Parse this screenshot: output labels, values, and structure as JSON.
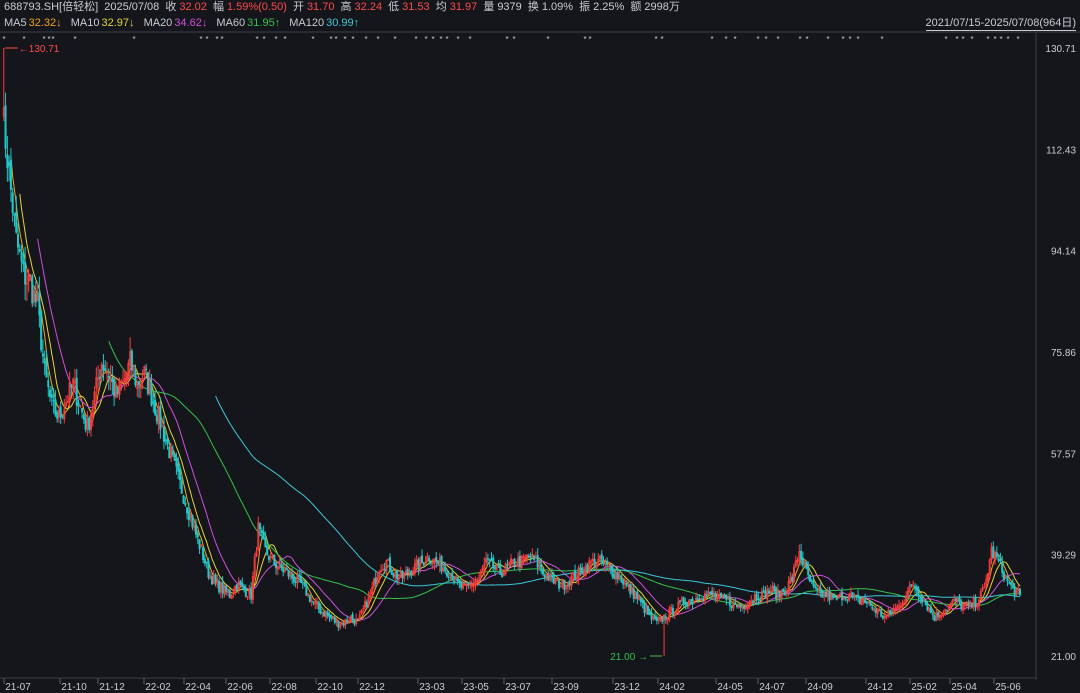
{
  "header": {
    "code": "688793.SH[倍轻松]",
    "date": "2025/07/08",
    "close_label": "收",
    "close": "32.02",
    "change_label": "幅",
    "change": "1.59%(0.50)",
    "open_label": "开",
    "open": "31.70",
    "high_label": "高",
    "high": "32.24",
    "low_label": "低",
    "low": "31.53",
    "avg_label": "均",
    "avg": "31.97",
    "vol_label": "量",
    "vol": "9379",
    "turnover_label": "换",
    "turnover": "1.09%",
    "amp_label": "振",
    "amp": "2.25%",
    "amount_label": "额",
    "amount": "2998万"
  },
  "ma_legend": [
    {
      "label": "MA5",
      "value": "32.32↓",
      "color": "#f2a41c"
    },
    {
      "label": "MA10",
      "value": "32.97↓",
      "color": "#e5d43a"
    },
    {
      "label": "MA20",
      "value": "34.62↓",
      "color": "#d14fd8"
    },
    {
      "label": "MA60",
      "value": "31.95↑",
      "color": "#35c24a"
    },
    {
      "label": "MA120",
      "value": "30.99↑",
      "color": "#3ec8d8"
    }
  ],
  "date_range": "2021/07/15-2025/07/08(964日)",
  "chart_data": {
    "type": "candlestick",
    "y_axis_ticks": [
      "130.71",
      "112.43",
      "94.14",
      "75.86",
      "57.57",
      "39.29",
      "21.00"
    ],
    "ylim": [
      21.0,
      130.71
    ],
    "x_axis_ticks": [
      "21-07",
      "21-10",
      "21-12",
      "22-02",
      "22-04",
      "22-06",
      "22-08",
      "22-10",
      "22-12",
      "23-03",
      "23-05",
      "23-07",
      "23-09",
      "23-12",
      "24-02",
      "24-05",
      "24-07",
      "24-09",
      "24-12",
      "25-02",
      "25-04",
      "25-06"
    ],
    "max_marker": "130.71",
    "min_marker": "21.00",
    "trend_close": [
      [
        0,
        120
      ],
      [
        4,
        108
      ],
      [
        8,
        96
      ],
      [
        12,
        90
      ],
      [
        16,
        88
      ],
      [
        20,
        84
      ],
      [
        24,
        72
      ],
      [
        28,
        66
      ],
      [
        32,
        64
      ],
      [
        36,
        67
      ],
      [
        40,
        70
      ],
      [
        44,
        66
      ],
      [
        48,
        62
      ],
      [
        52,
        68
      ],
      [
        56,
        74
      ],
      [
        60,
        72
      ],
      [
        64,
        68
      ],
      [
        68,
        70
      ],
      [
        72,
        74
      ],
      [
        76,
        70
      ],
      [
        80,
        72
      ],
      [
        84,
        68
      ],
      [
        88,
        64
      ],
      [
        92,
        60
      ],
      [
        96,
        56
      ],
      [
        100,
        52
      ],
      [
        104,
        48
      ],
      [
        108,
        44
      ],
      [
        112,
        40
      ],
      [
        116,
        36
      ],
      [
        120,
        34
      ],
      [
        124,
        33
      ],
      [
        128,
        32
      ],
      [
        132,
        34
      ],
      [
        136,
        33
      ],
      [
        140,
        32
      ],
      [
        144,
        44
      ],
      [
        148,
        40
      ],
      [
        152,
        38
      ],
      [
        156,
        37
      ],
      [
        160,
        36
      ],
      [
        164,
        35
      ],
      [
        168,
        34
      ],
      [
        172,
        32
      ],
      [
        176,
        30
      ],
      [
        180,
        29
      ],
      [
        184,
        28
      ],
      [
        188,
        27
      ],
      [
        192,
        27
      ],
      [
        196,
        28
      ],
      [
        200,
        27
      ],
      [
        204,
        30
      ],
      [
        208,
        33
      ],
      [
        212,
        37
      ],
      [
        216,
        38
      ],
      [
        220,
        36
      ],
      [
        224,
        35
      ],
      [
        228,
        36
      ],
      [
        232,
        37
      ],
      [
        236,
        38
      ],
      [
        240,
        39
      ],
      [
        244,
        38
      ],
      [
        248,
        37
      ],
      [
        252,
        36
      ],
      [
        256,
        34
      ],
      [
        260,
        33
      ],
      [
        264,
        34
      ],
      [
        268,
        35
      ],
      [
        272,
        38
      ],
      [
        276,
        37
      ],
      [
        280,
        36
      ],
      [
        284,
        37
      ],
      [
        288,
        38
      ],
      [
        292,
        38
      ],
      [
        296,
        39
      ],
      [
        300,
        38
      ],
      [
        304,
        36
      ],
      [
        308,
        35
      ],
      [
        312,
        34
      ],
      [
        316,
        34
      ],
      [
        320,
        35
      ],
      [
        324,
        36
      ],
      [
        328,
        37
      ],
      [
        332,
        38
      ],
      [
        336,
        38
      ],
      [
        340,
        37
      ],
      [
        344,
        36
      ],
      [
        348,
        35
      ],
      [
        352,
        33
      ],
      [
        356,
        32
      ],
      [
        360,
        30
      ],
      [
        364,
        28
      ],
      [
        368,
        27
      ],
      [
        372,
        28
      ],
      [
        376,
        29
      ],
      [
        380,
        30
      ],
      [
        384,
        31
      ],
      [
        388,
        31
      ],
      [
        392,
        32
      ],
      [
        396,
        32
      ],
      [
        400,
        32
      ],
      [
        404,
        31
      ],
      [
        408,
        31
      ],
      [
        412,
        30
      ],
      [
        416,
        30
      ],
      [
        420,
        31
      ],
      [
        424,
        32
      ],
      [
        428,
        32
      ],
      [
        432,
        33
      ],
      [
        436,
        32
      ],
      [
        440,
        33
      ],
      [
        444,
        35
      ],
      [
        448,
        40
      ],
      [
        452,
        36
      ],
      [
        456,
        33
      ],
      [
        460,
        32
      ],
      [
        464,
        32
      ],
      [
        468,
        31
      ],
      [
        472,
        32
      ],
      [
        476,
        32
      ],
      [
        480,
        31
      ],
      [
        484,
        31
      ],
      [
        488,
        30
      ],
      [
        492,
        29
      ],
      [
        496,
        28
      ],
      [
        500,
        29
      ],
      [
        504,
        30
      ],
      [
        508,
        32
      ],
      [
        512,
        34
      ],
      [
        516,
        32
      ],
      [
        520,
        30
      ],
      [
        524,
        28
      ],
      [
        528,
        29
      ],
      [
        532,
        30
      ],
      [
        536,
        31
      ],
      [
        540,
        30
      ],
      [
        544,
        30
      ],
      [
        548,
        31
      ],
      [
        552,
        33
      ],
      [
        556,
        40
      ],
      [
        560,
        38
      ],
      [
        564,
        35
      ],
      [
        568,
        33
      ],
      [
        572,
        32
      ]
    ]
  }
}
